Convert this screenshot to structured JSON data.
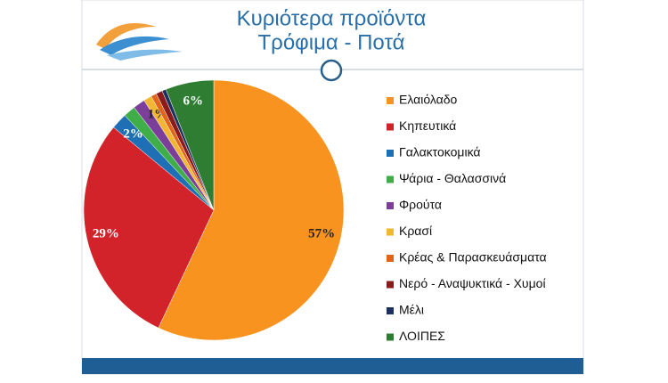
{
  "chart_data": {
    "type": "pie",
    "title": "Κυριότερα προϊόντα",
    "subtitle": "Τρόφιμα - Ποτά",
    "categories": [
      "Ελαιόλαδο",
      "Κηπευτικά",
      "Γαλακτοκομικά",
      "Ψάρια - Θαλασσινά",
      "Φρούτα",
      "Κρασί",
      "Κρέας & Παρασκευάσματα",
      "Νερό - Αναψυκτικά - Χυμοί",
      "Μέλι",
      "ΛΟΙΠΕΣ"
    ],
    "values": [
      57,
      29,
      2,
      1.5,
      1.5,
      1,
      0.7,
      0.8,
      0.5,
      6
    ],
    "value_labels": [
      "57%",
      "29%",
      "2%",
      null,
      null,
      "1%",
      null,
      null,
      null,
      "6%"
    ],
    "colors": [
      "#f7931e",
      "#d2232a",
      "#1f6fb5",
      "#3fae49",
      "#7b3f9a",
      "#f2b632",
      "#e0641b",
      "#8b1a1a",
      "#1c2f5e",
      "#2e7d32"
    ],
    "legend": "right"
  }
}
